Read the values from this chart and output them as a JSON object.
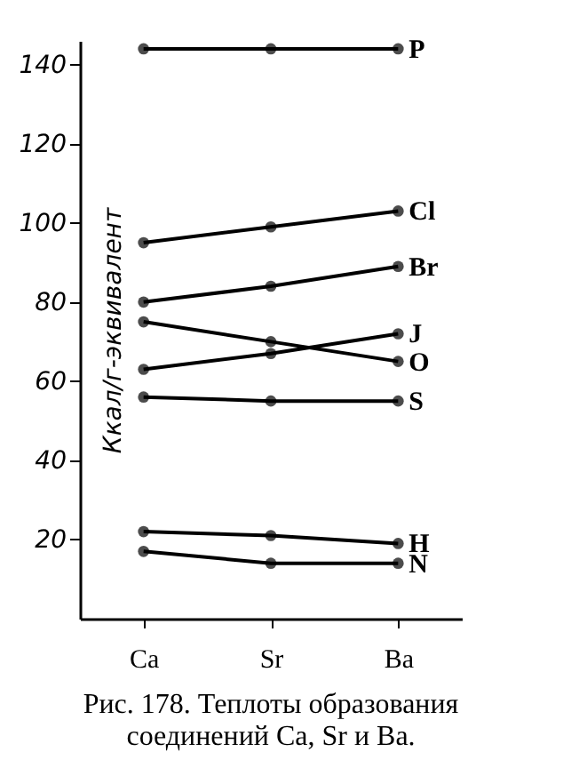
{
  "chart_data": {
    "type": "line",
    "title": "Рис. 178. Теплоты образования соединений Ca, Sr и Ba.",
    "ylabel": "Ккал/г-эквивалент",
    "categories": [
      "Ca",
      "Sr",
      "Ba"
    ],
    "series": [
      {
        "name": "P",
        "color": "#000000",
        "values": [
          144,
          144,
          144
        ]
      },
      {
        "name": "Cl",
        "color": "#000000",
        "values": [
          95,
          99,
          103
        ]
      },
      {
        "name": "Br",
        "color": "#000000",
        "values": [
          80,
          84,
          89
        ]
      },
      {
        "name": "J",
        "color": "#000000",
        "values": [
          63,
          67,
          72
        ]
      },
      {
        "name": "O",
        "color": "#000000",
        "values": [
          75,
          70,
          65
        ]
      },
      {
        "name": "S",
        "color": "#000000",
        "values": [
          56,
          55,
          55
        ]
      },
      {
        "name": "H",
        "color": "#000000",
        "values": [
          22,
          21,
          19
        ]
      },
      {
        "name": "N",
        "color": "#000000",
        "values": [
          17,
          14,
          14
        ]
      }
    ],
    "ylim": [
      0,
      146
    ],
    "yticks": [
      20,
      40,
      60,
      80,
      100,
      120,
      140
    ],
    "marker": "circle",
    "line_style": "solid",
    "legend": false,
    "grid": false
  }
}
